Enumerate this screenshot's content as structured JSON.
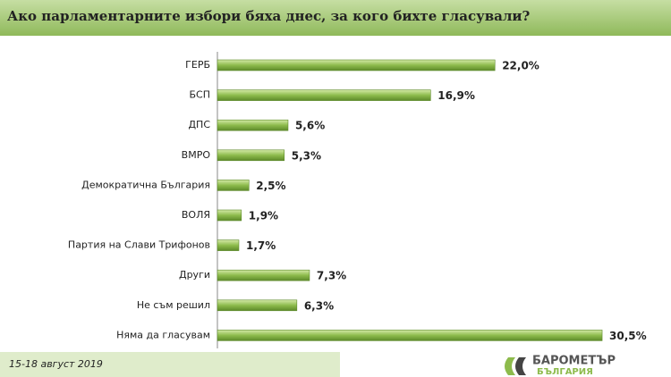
{
  "chart_data": {
    "type": "bar",
    "orientation": "horizontal",
    "title": "Ако парламентарните избори бяха днес, за кого бихте гласували?",
    "categories": [
      "ГЕРБ",
      "БСП",
      "ДПС",
      "ВМРО",
      "Демократична България",
      "ВОЛЯ",
      "Партия на Слави Трифонов",
      "Други",
      "Не съм решил",
      "Няма да гласувам"
    ],
    "values": [
      22.0,
      16.9,
      5.6,
      5.3,
      2.5,
      1.9,
      1.7,
      7.3,
      6.3,
      30.5
    ],
    "value_labels": [
      "22,0%",
      "16,9%",
      "5,6%",
      "5,3%",
      "2,5%",
      "1,9%",
      "1,7%",
      "7,3%",
      "6,3%",
      "30,5%"
    ],
    "color": "#8dbb4c"
  },
  "footer": {
    "date": "15-18 август 2019"
  },
  "logo": {
    "line1": "БАРОМЕТЪР",
    "line2": "БЪЛГАРИЯ"
  }
}
